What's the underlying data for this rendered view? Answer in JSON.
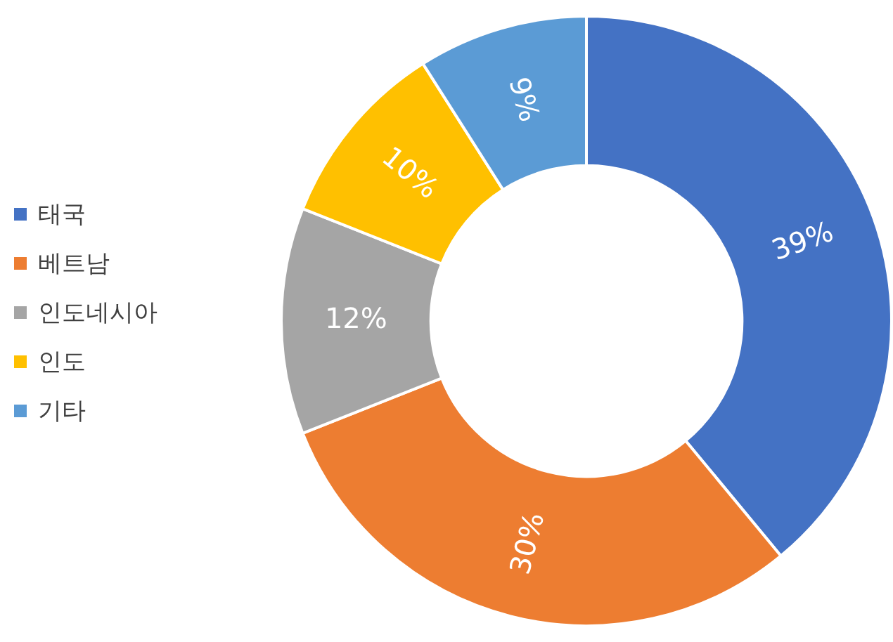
{
  "chart_data": {
    "type": "donut",
    "categories": [
      "태국",
      "베트남",
      "인도네시아",
      "인도",
      "기타"
    ],
    "values": [
      39,
      30,
      12,
      10,
      9
    ],
    "colors": [
      "#4472c4",
      "#ed7d31",
      "#a5a5a5",
      "#ffc000",
      "#5b9bd5"
    ],
    "value_labels": [
      "39%",
      "30%",
      "12%",
      "10%",
      "9%"
    ],
    "legend": "left"
  }
}
